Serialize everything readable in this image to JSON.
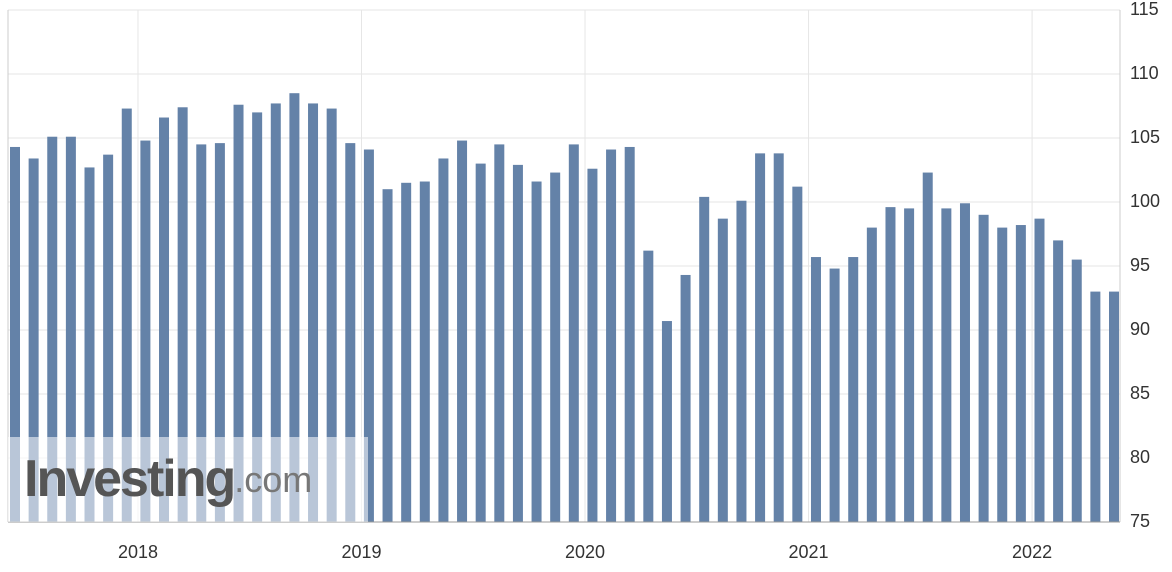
{
  "chart_data": {
    "type": "bar",
    "categories": [
      null,
      null,
      null,
      null,
      null,
      null,
      null,
      "2018",
      null,
      null,
      null,
      null,
      null,
      null,
      null,
      null,
      null,
      null,
      null,
      "2019",
      null,
      null,
      null,
      null,
      null,
      null,
      null,
      null,
      null,
      null,
      null,
      "2020",
      null,
      null,
      null,
      null,
      null,
      null,
      null,
      null,
      null,
      null,
      null,
      "2021",
      null,
      null,
      null,
      null,
      null,
      null,
      null,
      null,
      null,
      null,
      null,
      "2022",
      null,
      null,
      null,
      null
    ],
    "values": [
      104.3,
      103.4,
      105.1,
      105.1,
      102.7,
      103.7,
      107.3,
      104.8,
      106.6,
      107.4,
      104.5,
      104.6,
      107.6,
      107.0,
      107.7,
      108.5,
      107.7,
      107.3,
      104.6,
      104.1,
      101.0,
      101.5,
      101.6,
      103.4,
      104.8,
      103.0,
      104.5,
      102.9,
      101.6,
      102.3,
      104.5,
      102.6,
      104.1,
      104.3,
      96.2,
      90.7,
      94.3,
      100.4,
      98.7,
      100.1,
      103.8,
      103.8,
      101.2,
      95.7,
      94.8,
      95.7,
      98.0,
      99.6,
      99.5,
      102.3,
      99.5,
      99.9,
      99.0,
      98.0,
      98.2,
      98.7,
      97.0,
      95.5,
      93.0,
      93.0
    ],
    "color": "#6482a8",
    "ylim": [
      75,
      115
    ],
    "yticks": [
      75,
      80,
      85,
      90,
      95,
      100,
      105,
      110,
      115
    ],
    "grid": true,
    "watermark": {
      "brand": "Investing",
      "suffix": ".com"
    }
  }
}
